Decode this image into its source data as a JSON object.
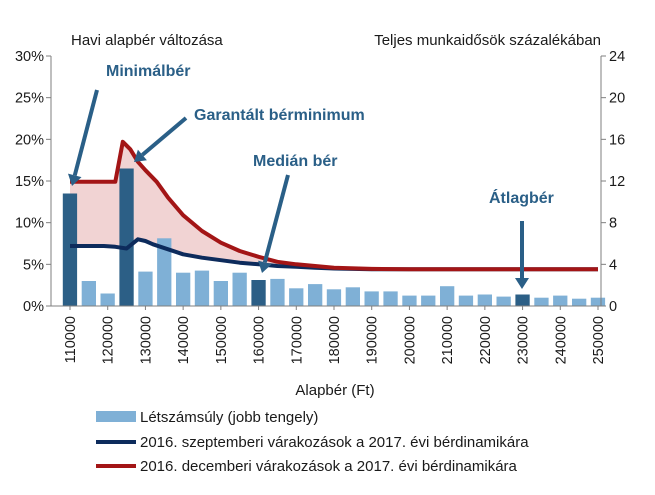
{
  "chart_data": {
    "type": "bar",
    "left_axis_title": "Havi alapbér változása",
    "right_axis_title": "Teljes munkaidősök százalékában",
    "xlabel": "Alapbér (Ft)",
    "x_tick_labels": [
      "110000",
      "120000",
      "130000",
      "140000",
      "150000",
      "160000",
      "170000",
      "180000",
      "190000",
      "200000",
      "210000",
      "220000",
      "230000",
      "240000",
      "250000"
    ],
    "y_left": {
      "lim": [
        0,
        30
      ],
      "ticks": [
        "0%",
        "5%",
        "10%",
        "15%",
        "20%",
        "25%",
        "30%"
      ]
    },
    "y_right": {
      "lim": [
        0,
        24
      ],
      "ticks": [
        "0",
        "4",
        "8",
        "12",
        "16",
        "20",
        "24"
      ]
    },
    "x_range": [
      110000,
      250000
    ],
    "bars": {
      "name": "Létszámsúly (jobb tengely)",
      "axis": "right",
      "color": "#7fb0d6",
      "highlight_color": "#2c5f86",
      "x": [
        110000,
        115000,
        120000,
        125000,
        130000,
        135000,
        140000,
        145000,
        150000,
        155000,
        160000,
        165000,
        170000,
        175000,
        180000,
        185000,
        190000,
        195000,
        200000,
        205000,
        210000,
        215000,
        220000,
        225000,
        230000,
        235000,
        240000,
        245000,
        250000
      ],
      "values": [
        10.8,
        2.4,
        1.2,
        13.2,
        3.3,
        6.5,
        3.2,
        3.4,
        2.4,
        3.2,
        2.5,
        2.6,
        1.7,
        2.1,
        1.6,
        1.8,
        1.4,
        1.4,
        1.0,
        1.0,
        1.9,
        1.0,
        1.1,
        0.9,
        1.1,
        0.8,
        1.0,
        0.7,
        0.8
      ],
      "highlighted": [
        110000,
        125000,
        160000,
        230000
      ]
    },
    "series": [
      {
        "name": "2016. szeptemberi várakozások a 2017. évi bérdinamikára",
        "axis": "left",
        "color": "#0d2b5c",
        "x": [
          110000,
          113000,
          116000,
          119000,
          122000,
          125000,
          128000,
          130000,
          132000,
          136000,
          140000,
          145000,
          150000,
          155000,
          160000,
          165000,
          170000,
          175000,
          180000,
          190000,
          200000,
          220000,
          240000,
          250000
        ],
        "values": [
          7.2,
          7.2,
          7.2,
          7.2,
          7.1,
          6.9,
          8.0,
          7.8,
          7.4,
          6.8,
          6.2,
          5.8,
          5.5,
          5.2,
          5.0,
          4.8,
          4.7,
          4.6,
          4.5,
          4.4,
          4.4,
          4.4,
          4.4,
          4.4
        ]
      },
      {
        "name": "2016. decemberi várakozások a 2017. évi bérdinamikára",
        "axis": "left",
        "color": "#a31516",
        "x": [
          110000,
          113000,
          116000,
          119000,
          122000,
          124000,
          126000,
          128000,
          130000,
          133000,
          136000,
          140000,
          145000,
          150000,
          155000,
          160000,
          165000,
          170000,
          175000,
          180000,
          190000,
          200000,
          220000,
          240000,
          250000
        ],
        "values": [
          14.9,
          14.9,
          14.9,
          14.9,
          14.9,
          19.7,
          18.8,
          17.3,
          16.3,
          14.9,
          13.0,
          10.9,
          9.0,
          7.6,
          6.6,
          5.9,
          5.3,
          5.0,
          4.8,
          4.6,
          4.45,
          4.4,
          4.4,
          4.4,
          4.4
        ]
      }
    ],
    "fill_between_color": "#e8b5b5",
    "annotations": [
      {
        "text": "Minimálbér"
      },
      {
        "text": "Garantált bérminimum"
      },
      {
        "text": "Medián bér"
      },
      {
        "text": "Átlagbér"
      }
    ],
    "legend": [
      "Létszámsúly (jobb tengely)",
      "2016. szeptemberi várakozások a 2017. évi bérdinamikára",
      "2016. decemberi várakozások a 2017. évi bérdinamikára"
    ],
    "legend_position": "bottom",
    "grid": false
  }
}
